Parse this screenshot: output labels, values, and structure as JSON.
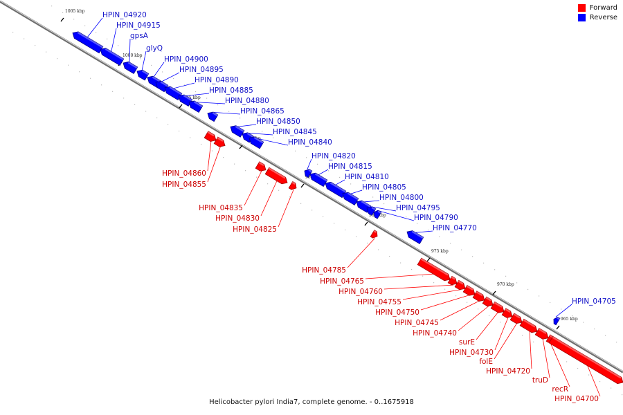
{
  "legend": {
    "forward_label": "Forward",
    "reverse_label": "Reverse",
    "forward_color": "#ff0000",
    "reverse_color": "#0000ff"
  },
  "caption": "Helicobacter pylori India7, complete genome. - 0..1675918",
  "ticks": [
    {
      "label": "1005 kbp"
    },
    {
      "label": "1000 kbp"
    },
    {
      "label": "995 kbp"
    },
    {
      "label": "990 kbp"
    },
    {
      "label": "985 kbp"
    },
    {
      "label": "980 kbp"
    },
    {
      "label": "975 kbp"
    },
    {
      "label": "970 kbp"
    },
    {
      "label": "965 kbp"
    }
  ],
  "genes": [
    {
      "label": "HPIN_04920",
      "strand": "reverse"
    },
    {
      "label": "HPIN_04915",
      "strand": "reverse"
    },
    {
      "label": "gpsA",
      "strand": "reverse"
    },
    {
      "label": "glyQ",
      "strand": "reverse"
    },
    {
      "label": "HPIN_04900",
      "strand": "reverse"
    },
    {
      "label": "HPIN_04895",
      "strand": "reverse"
    },
    {
      "label": "HPIN_04890",
      "strand": "reverse"
    },
    {
      "label": "HPIN_04885",
      "strand": "reverse"
    },
    {
      "label": "HPIN_04880",
      "strand": "reverse"
    },
    {
      "label": "HPIN_04865",
      "strand": "reverse"
    },
    {
      "label": "HPIN_04850",
      "strand": "reverse"
    },
    {
      "label": "HPIN_04845",
      "strand": "reverse"
    },
    {
      "label": "HPIN_04840",
      "strand": "reverse"
    },
    {
      "label": "HPIN_04860",
      "strand": "forward"
    },
    {
      "label": "HPIN_04855",
      "strand": "forward"
    },
    {
      "label": "HPIN_04820",
      "strand": "reverse"
    },
    {
      "label": "HPIN_04815",
      "strand": "reverse"
    },
    {
      "label": "HPIN_04810",
      "strand": "reverse"
    },
    {
      "label": "HPIN_04805",
      "strand": "reverse"
    },
    {
      "label": "HPIN_04800",
      "strand": "reverse"
    },
    {
      "label": "HPIN_04795",
      "strand": "reverse"
    },
    {
      "label": "HPIN_04790",
      "strand": "reverse"
    },
    {
      "label": "HPIN_04770",
      "strand": "reverse"
    },
    {
      "label": "HPIN_04835",
      "strand": "forward"
    },
    {
      "label": "HPIN_04830",
      "strand": "forward"
    },
    {
      "label": "HPIN_04825",
      "strand": "forward"
    },
    {
      "label": "HPIN_04785",
      "strand": "forward"
    },
    {
      "label": "HPIN_04765",
      "strand": "forward"
    },
    {
      "label": "HPIN_04760",
      "strand": "forward"
    },
    {
      "label": "HPIN_04755",
      "strand": "forward"
    },
    {
      "label": "HPIN_04750",
      "strand": "forward"
    },
    {
      "label": "HPIN_04745",
      "strand": "forward"
    },
    {
      "label": "HPIN_04740",
      "strand": "forward"
    },
    {
      "label": "surE",
      "strand": "forward"
    },
    {
      "label": "HPIN_04730",
      "strand": "forward"
    },
    {
      "label": "folE",
      "strand": "forward"
    },
    {
      "label": "HPIN_04720",
      "strand": "forward"
    },
    {
      "label": "truD",
      "strand": "forward"
    },
    {
      "label": "recR",
      "strand": "forward"
    },
    {
      "label": "HPIN_04700",
      "strand": "forward"
    },
    {
      "label": "HPIN_04705",
      "strand": "reverse"
    }
  ]
}
